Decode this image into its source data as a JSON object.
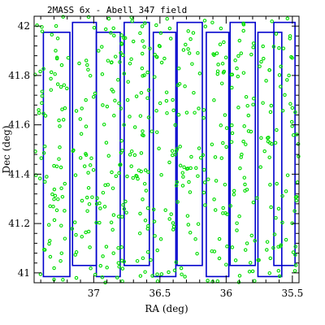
{
  "chart_data": {
    "type": "scatter",
    "title": "2MASS 6x - Abell 347 field",
    "xlabel": "RA (deg)",
    "ylabel": "Dec (deg)",
    "xlim": [
      37.45,
      35.45
    ],
    "ylim": [
      40.96,
      42.04
    ],
    "x_ticks": [
      37,
      36.5,
      36,
      35.5
    ],
    "x_tick_labels": [
      "37",
      "36.5",
      "36",
      "35.5"
    ],
    "y_ticks": [
      41,
      41.2,
      41.4,
      41.6,
      41.8,
      42
    ],
    "y_tick_labels": [
      "41",
      "41.2",
      "41.4",
      "41.6",
      "41.8",
      "42"
    ],
    "grid": false,
    "legend": "none",
    "colors": {
      "frame": "#000000",
      "tiles": "#0000cc",
      "points": "#00dd00"
    },
    "tiles": [
      {
        "ra_min": 37.18,
        "ra_max": 37.38,
        "dec_min": 40.985,
        "dec_max": 41.975
      },
      {
        "ra_min": 36.98,
        "ra_max": 37.16,
        "dec_min": 41.03,
        "dec_max": 42.015
      },
      {
        "ra_min": 36.8,
        "ra_max": 36.98,
        "dec_min": 40.985,
        "dec_max": 41.975
      },
      {
        "ra_min": 36.58,
        "ra_max": 36.77,
        "dec_min": 41.03,
        "dec_max": 42.015
      },
      {
        "ra_min": 36.38,
        "ra_max": 36.55,
        "dec_min": 40.985,
        "dec_max": 41.975
      },
      {
        "ra_min": 36.18,
        "ra_max": 36.37,
        "dec_min": 41.03,
        "dec_max": 42.015
      },
      {
        "ra_min": 35.98,
        "ra_max": 36.15,
        "dec_min": 40.985,
        "dec_max": 41.975
      },
      {
        "ra_min": 35.78,
        "ra_max": 35.97,
        "dec_min": 41.03,
        "dec_max": 42.015
      },
      {
        "ra_min": 35.58,
        "ra_max": 35.76,
        "dec_min": 40.985,
        "dec_max": 41.975
      },
      {
        "ra_min": 35.48,
        "ra_max": 35.64,
        "dec_min": 41.03,
        "dec_max": 42.015
      }
    ],
    "point_count": 540,
    "point_distribution": "approximately uniform over RA 35.45–37.45, Dec 40.96–42.04"
  }
}
